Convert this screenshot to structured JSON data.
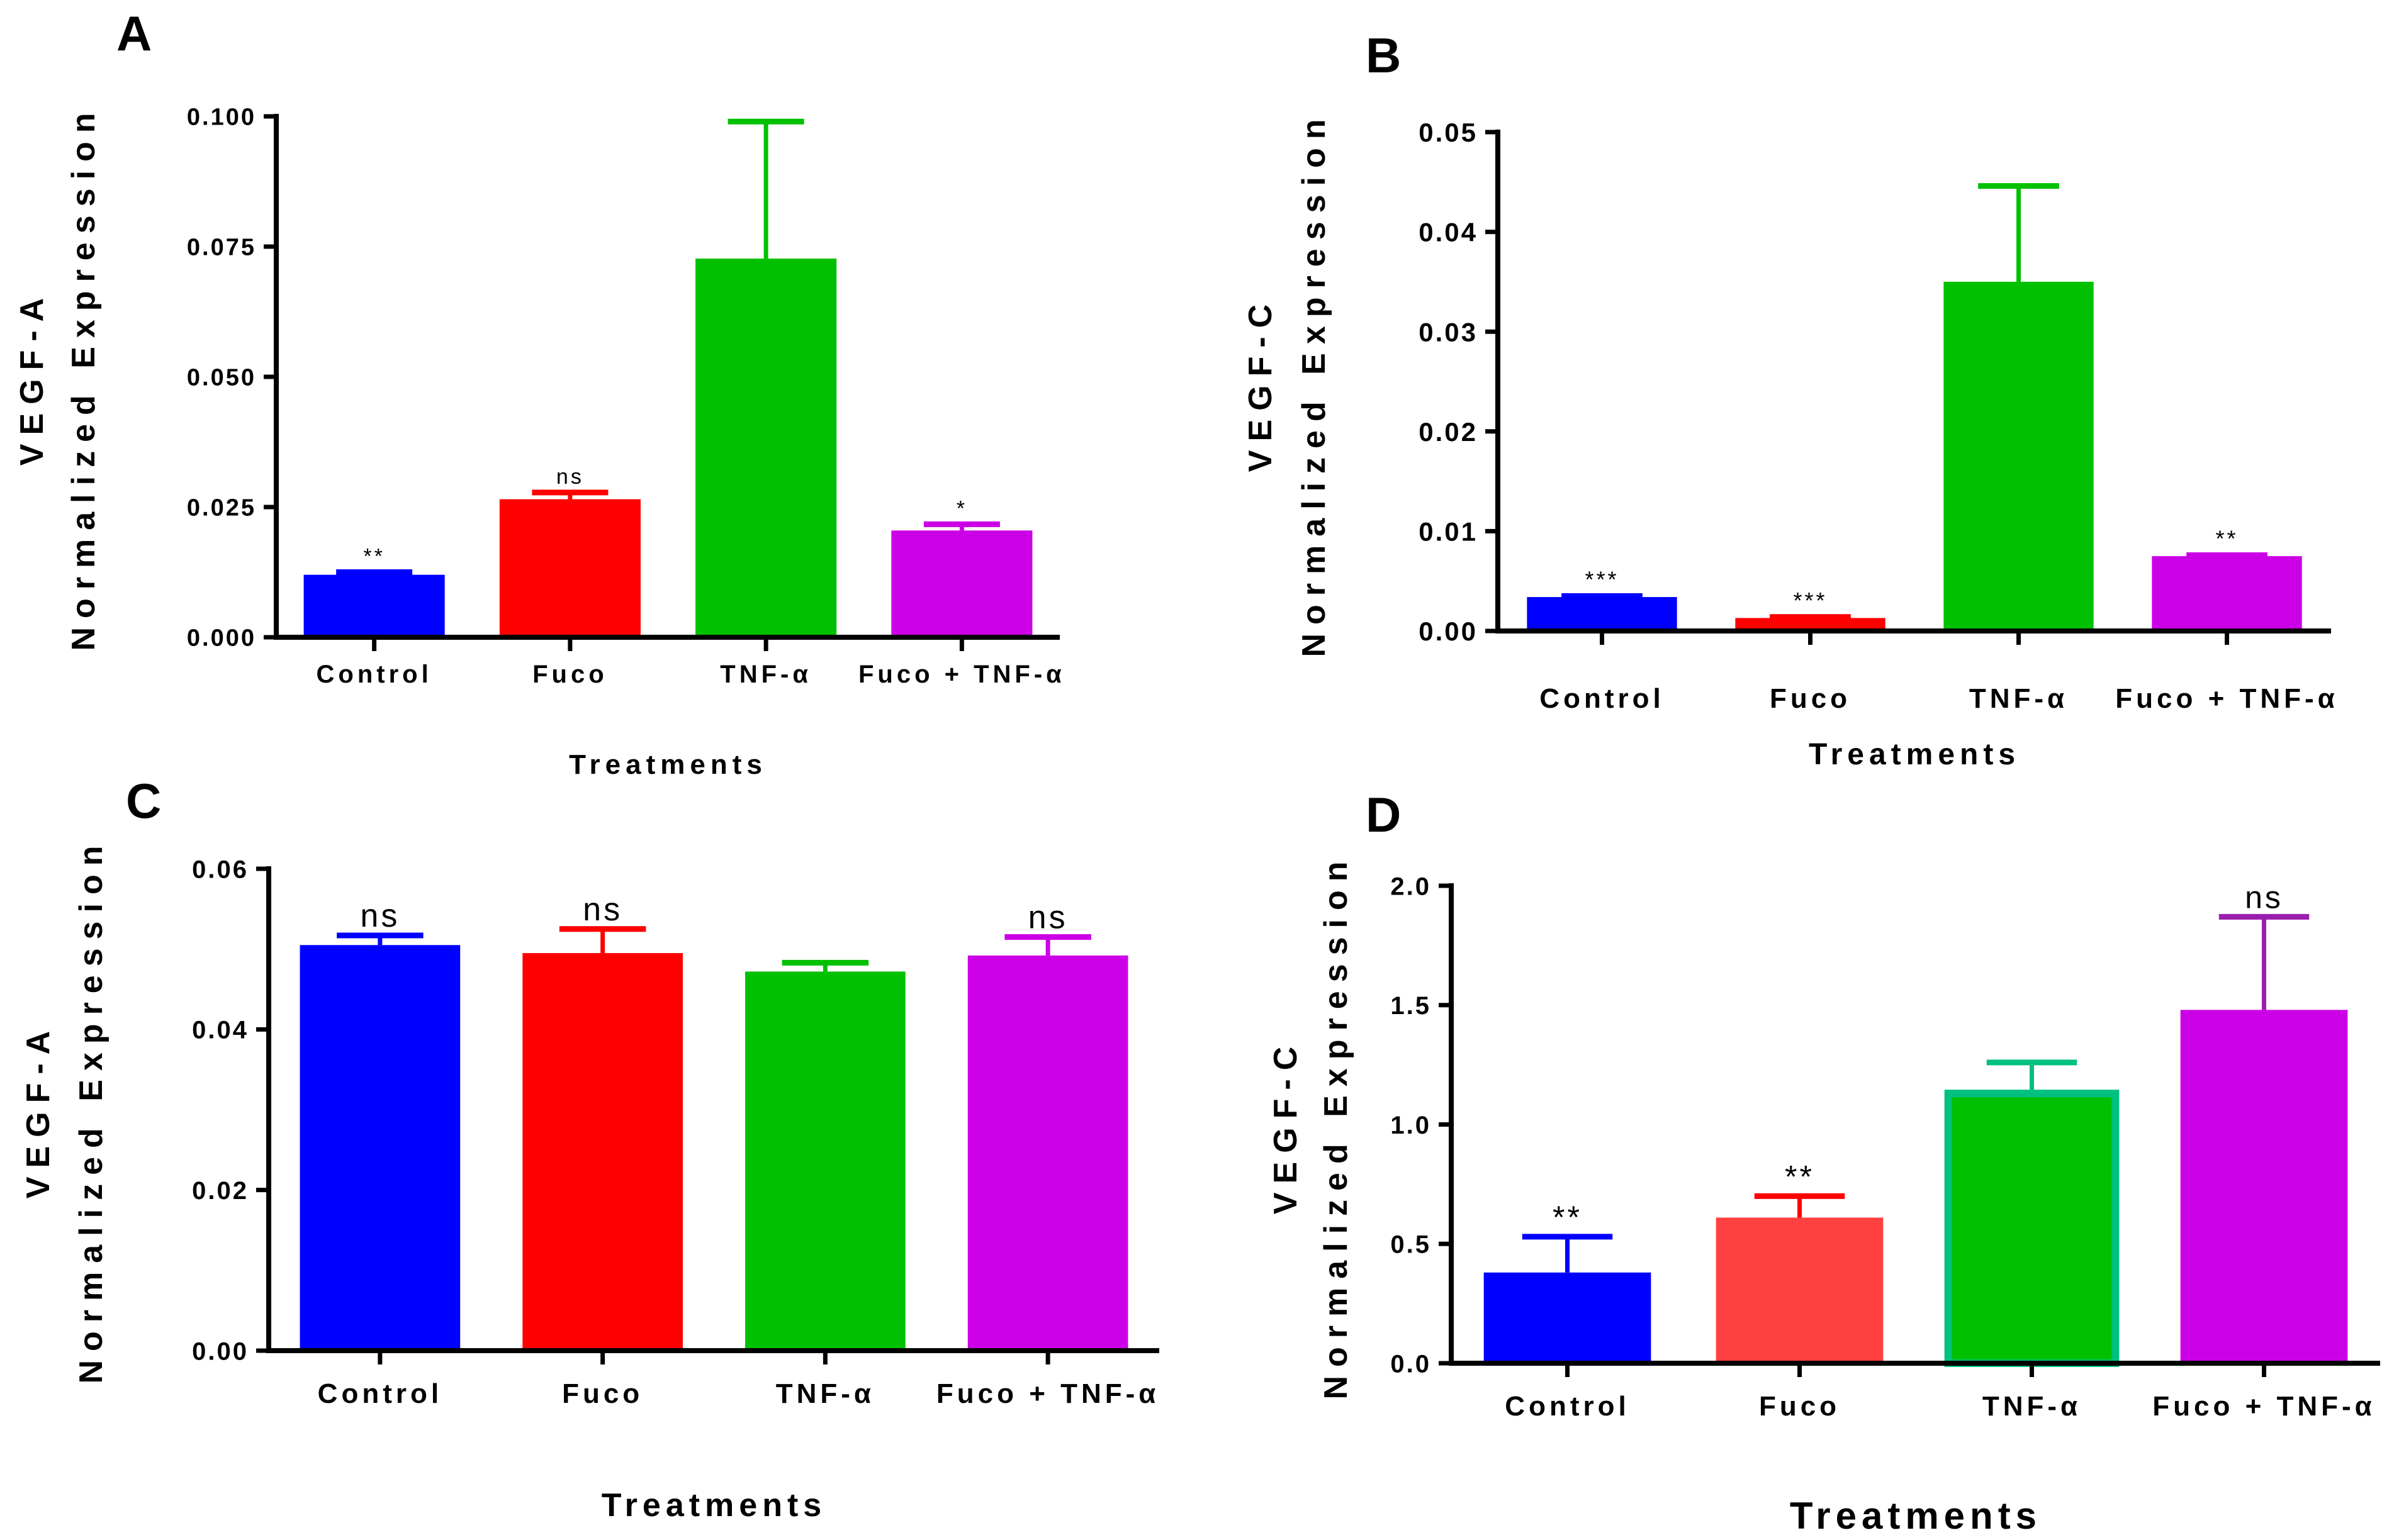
{
  "colors": {
    "blue": "#0000ff",
    "red": "#ff0000",
    "red_light": "#ff4040",
    "green": "#00c000",
    "green_edge": "#00c080",
    "magenta": "#cc00e6",
    "purple_err": "#9b1fae"
  },
  "chart_data": [
    {
      "panel": "A",
      "type": "bar",
      "categories": [
        "Control",
        "Fuco",
        "TNF-α",
        "Fuco + TNF-α"
      ],
      "values": [
        0.012,
        0.0265,
        0.0727,
        0.0205
      ],
      "error_upper": [
        0.0125,
        0.0278,
        0.099,
        0.0217
      ],
      "annotations": [
        "**",
        "ns",
        "",
        "*"
      ],
      "ylabel_line1": "VEGF-A",
      "ylabel_line2": "Normalized Expression",
      "xlabel": "Treatments",
      "ylim": [
        0,
        0.1
      ],
      "yticks": [
        "0.000",
        "0.025",
        "0.050",
        "0.075",
        "0.100"
      ],
      "bar_colors": [
        "#0000ff",
        "#ff0000",
        "#00c000",
        "#cc00e6"
      ],
      "err_colors": [
        "#0000ff",
        "#ff0000",
        "#00c000",
        "#cc00e6"
      ]
    },
    {
      "panel": "B",
      "type": "bar",
      "categories": [
        "Control",
        "Fuco",
        "TNF-α",
        "Fuco + TNF-α"
      ],
      "values": [
        0.0034,
        0.0013,
        0.035,
        0.0075
      ],
      "error_upper": [
        0.0035,
        0.0014,
        0.0446,
        0.0076
      ],
      "annotations": [
        "***",
        "***",
        "",
        "**"
      ],
      "ylabel_line1": "VEGF-C",
      "ylabel_line2": "Normalized Expression",
      "xlabel": "Treatments",
      "ylim": [
        0,
        0.05
      ],
      "yticks": [
        "0.00",
        "0.01",
        "0.02",
        "0.03",
        "0.04",
        "0.05"
      ],
      "bar_colors": [
        "#0000ff",
        "#ff0000",
        "#00c000",
        "#cc00e6"
      ],
      "err_colors": [
        "#0000ff",
        "#ff0000",
        "#00c000",
        "#cc00e6"
      ]
    },
    {
      "panel": "C",
      "type": "bar",
      "categories": [
        "Control",
        "Fuco",
        "TNF-α",
        "Fuco + TNF-α"
      ],
      "values": [
        0.0505,
        0.0495,
        0.0472,
        0.0492
      ],
      "error_upper": [
        0.0517,
        0.0525,
        0.0483,
        0.0515
      ],
      "annotations": [
        "ns",
        "ns",
        "",
        "ns"
      ],
      "ylabel_line1": "VEGF-A",
      "ylabel_line2": "Normalized Expression",
      "xlabel": "Treatments",
      "ylim": [
        0,
        0.06
      ],
      "yticks": [
        "0.00",
        "0.02",
        "0.04",
        "0.06"
      ],
      "bar_colors": [
        "#0000ff",
        "#ff0000",
        "#00c000",
        "#cc00e6"
      ],
      "err_colors": [
        "#0000ff",
        "#ff0000",
        "#00c000",
        "#cc00e6"
      ]
    },
    {
      "panel": "D",
      "type": "bar",
      "categories": [
        "Control",
        "Fuco",
        "TNF-α",
        "Fuco + TNF-α"
      ],
      "values": [
        0.38,
        0.61,
        1.13,
        1.48
      ],
      "error_upper": [
        0.53,
        0.7,
        1.26,
        1.87
      ],
      "annotations": [
        "**",
        "**",
        "",
        "ns"
      ],
      "ylabel_line1": "VEGF-C",
      "ylabel_line2": "Normalized Expression",
      "xlabel": "Treatments",
      "ylim": [
        0,
        2.0
      ],
      "yticks": [
        "0.0",
        "0.5",
        "1.0",
        "1.5",
        "2.0"
      ],
      "bar_colors": [
        "#0000ff",
        "#ff4040",
        "#00c000",
        "#cc00e6"
      ],
      "err_colors": [
        "#0000ff",
        "#ff0000",
        "#00c080",
        "#9b1fae"
      ]
    }
  ]
}
